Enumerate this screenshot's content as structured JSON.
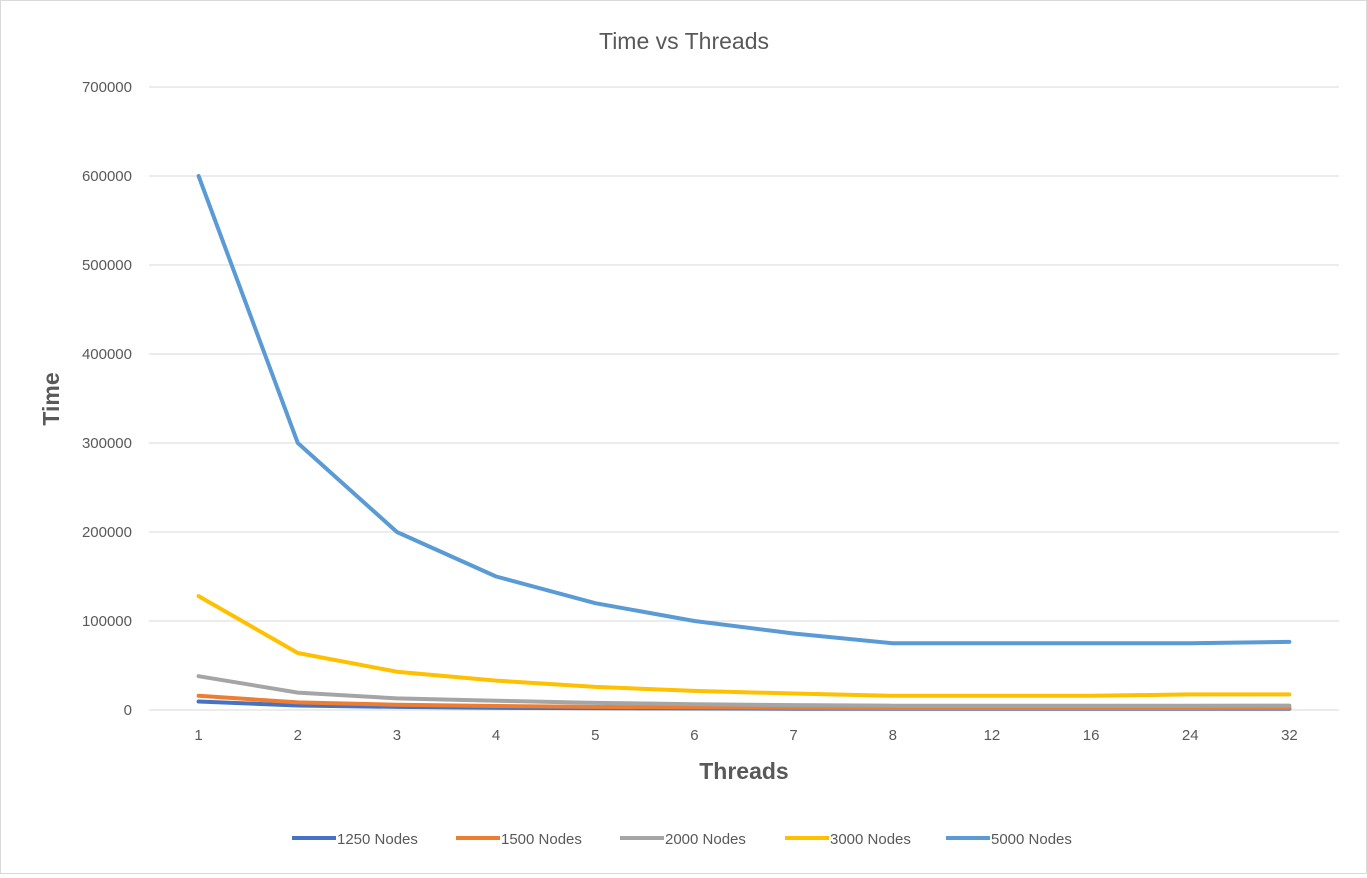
{
  "chart_data": {
    "type": "line",
    "title": "Time vs Threads",
    "xlabel": "Threads",
    "ylabel": "Time",
    "categories": [
      "1",
      "2",
      "3",
      "4",
      "5",
      "6",
      "7",
      "8",
      "12",
      "16",
      "24",
      "32"
    ],
    "ylim": [
      0,
      700000
    ],
    "yticks": [
      "0",
      "100000",
      "200000",
      "300000",
      "400000",
      "500000",
      "600000",
      "700000"
    ],
    "grid": true,
    "legend_position": "bottom",
    "series": [
      {
        "name": "1250 Nodes",
        "color": "#4472c4",
        "values": [
          9500,
          5000,
          3500,
          2500,
          2000,
          1700,
          1500,
          1300,
          1300,
          1300,
          1300,
          1300
        ]
      },
      {
        "name": "1500 Nodes",
        "color": "#ed7d31",
        "values": [
          16000,
          8500,
          6000,
          4500,
          3500,
          3000,
          2600,
          2300,
          2300,
          2300,
          2300,
          2400
        ]
      },
      {
        "name": "2000 Nodes",
        "color": "#a5a5a5",
        "values": [
          38000,
          19500,
          13000,
          10500,
          8000,
          6500,
          5500,
          4800,
          4800,
          4800,
          4800,
          4900
        ]
      },
      {
        "name": "3000 Nodes",
        "color": "#ffc000",
        "values": [
          128000,
          64000,
          43000,
          33000,
          26000,
          21500,
          18500,
          16000,
          16000,
          16000,
          17500,
          17500
        ]
      },
      {
        "name": "5000 Nodes",
        "color": "#5b9bd5",
        "values": [
          600000,
          300000,
          200000,
          150000,
          120000,
          100000,
          86000,
          75000,
          75000,
          75000,
          75000,
          76500
        ]
      }
    ]
  }
}
